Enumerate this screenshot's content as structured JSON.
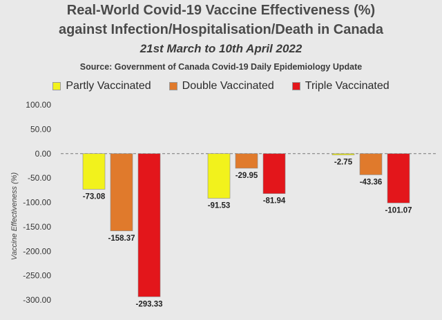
{
  "chart_data": {
    "type": "bar",
    "title": "Real-World Covid-19 Vaccine Effectiveness (%)",
    "title_line2": "against Infection/Hospitalisation/Death in Canada",
    "subtitle": "21st March to 10th April 2022",
    "source": "Source: Government of Canada Covid-19 Daily Epidemiology Update",
    "ylabel": "Vaccine Effectiveness (%)",
    "xlabel": "",
    "ylim": [
      -300,
      100
    ],
    "yticks": [
      100,
      50,
      0,
      -50,
      -100,
      -150,
      -200,
      -250,
      -300
    ],
    "ytick_labels": [
      "100.00",
      "50.00",
      "0.00",
      "-50.00",
      "-100.00",
      "-150.00",
      "-200.00",
      "-250.00",
      "-300.00"
    ],
    "legend_position": "top",
    "zero_line": "dashed",
    "categories": [
      "",
      "",
      ""
    ],
    "series": [
      {
        "name": "Partly Vaccinated",
        "color": "#f2f21c",
        "values": [
          -73.08,
          -91.53,
          -2.75
        ],
        "labels": [
          "-73.08",
          "-91.53",
          "-2.75"
        ]
      },
      {
        "name": "Double Vaccinated",
        "color": "#e07a2c",
        "values": [
          -158.37,
          -29.95,
          -43.36
        ],
        "labels": [
          "-158.37",
          "-29.95",
          "-43.36"
        ]
      },
      {
        "name": "Triple Vaccinated",
        "color": "#e3161b",
        "values": [
          -293.33,
          -81.94,
          -101.07
        ],
        "labels": [
          "-293.33",
          "-81.94",
          "-101.07"
        ]
      }
    ]
  }
}
